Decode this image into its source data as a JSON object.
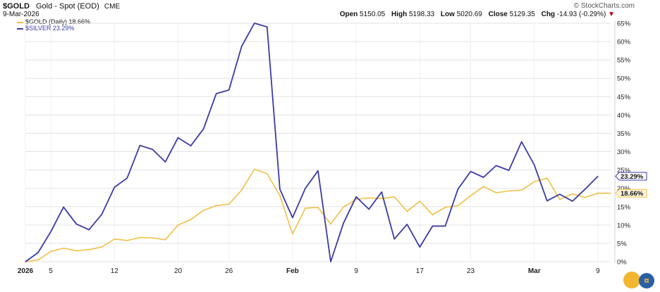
{
  "header": {
    "symbol": "$GOLD",
    "description": "Gold - Spot (EOD)",
    "exchange": "CME",
    "date": "9-Mar-2026",
    "brand": "© StockCharts.com",
    "open_label": "Open",
    "open": "5150.05",
    "high_label": "High",
    "high": "5198.33",
    "low_label": "Low",
    "low": "5020.69",
    "close_label": "Close",
    "close": "5129.35",
    "chg_label": "Chg",
    "chg": "-14.93 (-0.29%)",
    "chg_arrow": "▼"
  },
  "colors": {
    "gold": "#f0bd3c",
    "silver": "#3b3aa8"
  },
  "chart_data": {
    "type": "line",
    "x_ticks": [
      "2026",
      "5",
      "12",
      "20",
      "26",
      "Feb",
      "9",
      "17",
      "23",
      "Mar",
      "9"
    ],
    "y_ticks": [
      "0%",
      "5%",
      "10%",
      "15%",
      "20%",
      "25%",
      "30%",
      "35%",
      "40%",
      "45%",
      "50%",
      "55%",
      "60%",
      "65%"
    ],
    "ylim": [
      0,
      65
    ],
    "series": [
      {
        "name": "$GOLD (Daily) 18.66%",
        "end_label": "18.66%",
        "color": "#f0bd3c",
        "values": [
          0,
          0.5,
          2.8,
          3.7,
          3,
          3.3,
          4,
          6.2,
          5.8,
          6.6,
          6.5,
          6,
          10,
          11.5,
          14,
          15.3,
          15.7,
          19.5,
          25.2,
          24,
          18,
          7.6,
          14.6,
          14.8,
          10.3,
          14.9,
          17,
          17.4,
          17.2,
          17.7,
          13.7,
          16.5,
          12.8,
          14.8,
          15.3,
          18,
          20.5,
          18.8,
          19.3,
          19.5,
          21.8,
          22.8,
          17,
          18.5,
          17.5,
          18.7,
          18.66
        ]
      },
      {
        "name": "$SILVER 23.29%",
        "end_label": "23.29%",
        "color": "#3b3aa8",
        "values": [
          0,
          2.5,
          8.2,
          14.9,
          10.3,
          8.7,
          12.9,
          20.3,
          22.8,
          31.7,
          30.6,
          27.2,
          33.8,
          31.6,
          36.2,
          45.8,
          46.8,
          58.7,
          65,
          64,
          19.8,
          12,
          20,
          24.8,
          0,
          10.5,
          17.7,
          14.3,
          19,
          6.2,
          10.2,
          4,
          9.7,
          9.7,
          19.8,
          24.6,
          23,
          26.2,
          24.9,
          32.7,
          26.4,
          16.6,
          18.4,
          16.5,
          19.8,
          23.29
        ]
      }
    ]
  }
}
